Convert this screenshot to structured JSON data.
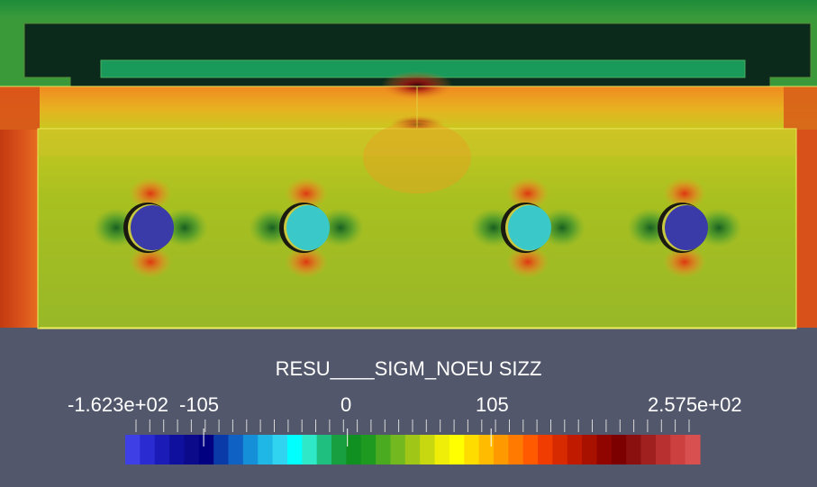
{
  "legend": {
    "title": "RESU____SIGM_NOEU SIZZ",
    "min_label": "-1.623e+02",
    "max_label": "2.575e+02",
    "tick_labels": [
      "-105",
      "0",
      "105"
    ],
    "range": [
      -162.3,
      257.5
    ],
    "colormap": [
      "#3f3fe6",
      "#2b2bd2",
      "#1b1bb8",
      "#10109f",
      "#0a0a8a",
      "#000080",
      "#0a3aa8",
      "#0f62c4",
      "#1590d8",
      "#1fb7e6",
      "#30d4f0",
      "#00ffff",
      "#2ee8c8",
      "#1fbf7f",
      "#18a040",
      "#109020",
      "#1f9a20",
      "#4aaa20",
      "#74b820",
      "#a0c618",
      "#c8d810",
      "#eeee08",
      "#ffff00",
      "#ffdc00",
      "#ffbb00",
      "#ff9900",
      "#ff7a00",
      "#ff5a00",
      "#f03c00",
      "#d82a00",
      "#c01a00",
      "#a81000",
      "#900500",
      "#7d0000",
      "#8a1010",
      "#a02020",
      "#b83030",
      "#cc4040",
      "#d85050"
    ]
  },
  "colors": {
    "background": "#52576b",
    "plate_top": "#1a8c3a",
    "steel_beam": "#0a2a1a",
    "inner_band": "#1a9a5a"
  },
  "holes": [
    {
      "name": "hole-1",
      "fill": "#3a3aa8"
    },
    {
      "name": "hole-2",
      "fill": "#3ac8c8"
    },
    {
      "name": "hole-3",
      "fill": "#3ac8c8"
    },
    {
      "name": "hole-4",
      "fill": "#3a3aa8"
    }
  ]
}
